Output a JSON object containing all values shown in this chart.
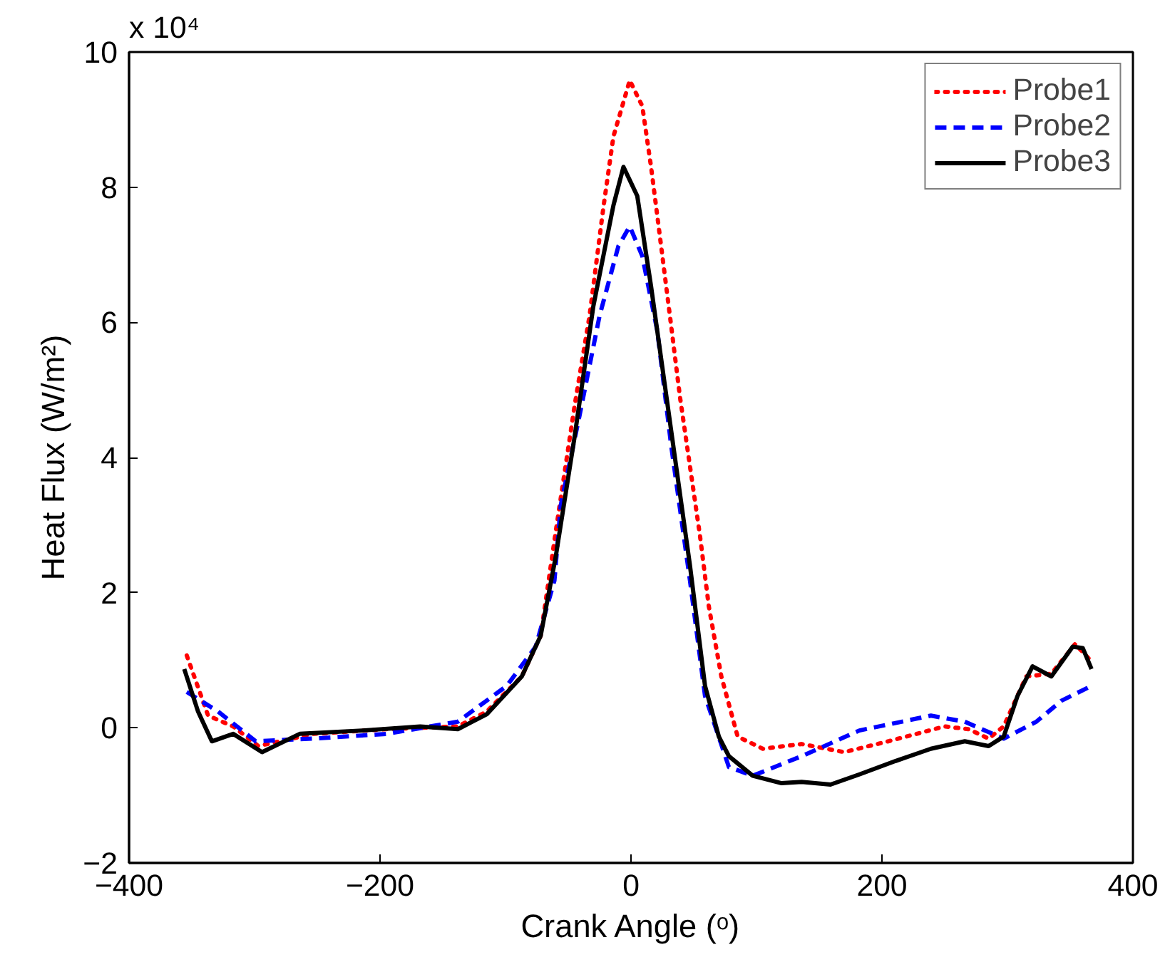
{
  "chart_data": {
    "type": "line",
    "xlabel": "Crank Angle (ᵒ)",
    "ylabel": "Heat Flux (W/m²)",
    "annotations": [
      "x 10⁴"
    ],
    "xlim": [
      -400,
      400
    ],
    "xticks": [
      {
        "value": -400,
        "label": "−400"
      },
      {
        "value": -200,
        "label": "−200"
      },
      0,
      200,
      400
    ],
    "ylim": [
      -2,
      10
    ],
    "yticks": [
      {
        "value": -2,
        "label": "−2"
      },
      0,
      2,
      4,
      6,
      8,
      10
    ],
    "grid": false,
    "legend": "top right",
    "marker": "none",
    "series": [
      {
        "name": "Probe1",
        "color": "#ff0000",
        "line_style": "dotted",
        "x": [
          -354,
          -337,
          -317,
          -297,
          -253,
          -195,
          -138,
          -115,
          -87,
          -72,
          -60,
          -45,
          -33,
          -22,
          -14,
          -1,
          9,
          16,
          24,
          32,
          39,
          47,
          55,
          62,
          72,
          85,
          105,
          136,
          170,
          205,
          250,
          269,
          285,
          297,
          315,
          335,
          354,
          367
        ],
        "values": [
          1.07,
          0.18,
          0.02,
          -0.27,
          -0.09,
          -0.02,
          0.02,
          0.24,
          0.76,
          1.36,
          2.9,
          4.76,
          6.1,
          7.7,
          8.75,
          9.58,
          9.2,
          8.3,
          7.13,
          5.95,
          4.9,
          3.87,
          2.84,
          1.8,
          0.76,
          -0.13,
          -0.31,
          -0.24,
          -0.36,
          -0.2,
          0.02,
          -0.02,
          -0.16,
          0.02,
          0.76,
          0.8,
          1.24,
          0.98
        ]
      },
      {
        "name": "Probe2",
        "color": "#0000ff",
        "line_style": "dashed",
        "x": [
          -354,
          -329,
          -299,
          -253,
          -195,
          -138,
          -99,
          -76,
          -61,
          -56,
          -41,
          -25,
          -10,
          -1,
          9,
          21,
          32,
          47,
          59,
          78,
          97,
          136,
          182,
          239,
          266,
          297,
          323,
          343,
          367
        ],
        "values": [
          0.53,
          0.24,
          -0.2,
          -0.16,
          -0.09,
          0.09,
          0.62,
          1.2,
          2.18,
          3.29,
          4.62,
          6.1,
          7.13,
          7.42,
          6.98,
          5.87,
          4.18,
          2.18,
          0.47,
          -0.58,
          -0.71,
          -0.42,
          -0.04,
          0.18,
          0.09,
          -0.16,
          0.09,
          0.4,
          0.62
        ]
      },
      {
        "name": "Probe3",
        "color": "#000000",
        "line_style": "solid",
        "x": [
          -356,
          -345,
          -334,
          -317,
          -294,
          -264,
          -214,
          -168,
          -138,
          -115,
          -87,
          -72,
          -60,
          -45,
          -30,
          -14,
          -6,
          5,
          16,
          32,
          47,
          59,
          70,
          78,
          97,
          120,
          136,
          159,
          182,
          211,
          239,
          266,
          285,
          297,
          308,
          320,
          335,
          352,
          360,
          367
        ],
        "values": [
          0.87,
          0.24,
          -0.2,
          -0.09,
          -0.36,
          -0.09,
          -0.04,
          0.02,
          -0.02,
          0.2,
          0.76,
          1.36,
          2.53,
          4.3,
          6.24,
          7.73,
          8.3,
          7.87,
          6.53,
          4.4,
          2.4,
          0.62,
          -0.13,
          -0.42,
          -0.71,
          -0.82,
          -0.8,
          -0.84,
          -0.69,
          -0.49,
          -0.31,
          -0.2,
          -0.27,
          -0.13,
          0.47,
          0.91,
          0.76,
          1.2,
          1.18,
          0.87
        ]
      }
    ]
  }
}
